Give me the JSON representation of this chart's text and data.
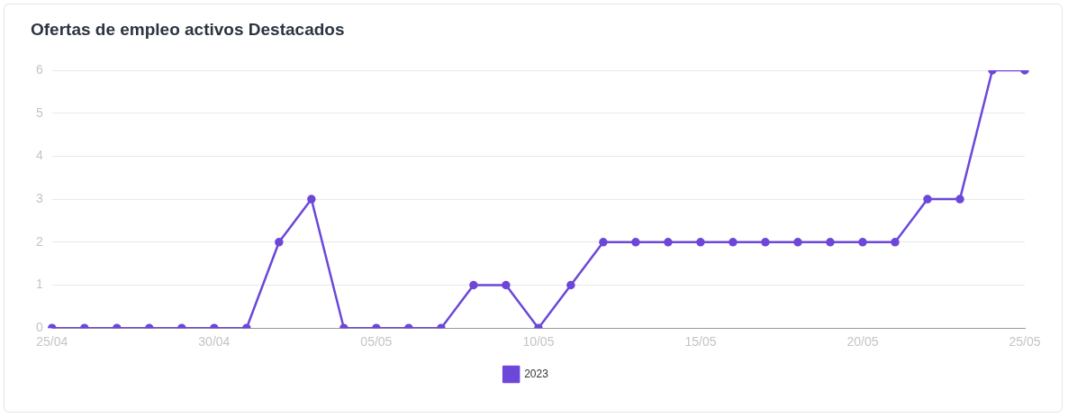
{
  "chart_data": {
    "type": "line",
    "title": "Ofertas de empleo activos Destacados",
    "categories": [
      "25/04",
      null,
      null,
      null,
      null,
      "30/04",
      null,
      null,
      null,
      null,
      "05/05",
      null,
      null,
      null,
      null,
      "10/05",
      null,
      null,
      null,
      null,
      "15/05",
      null,
      null,
      null,
      null,
      "20/05",
      null,
      null,
      null,
      null,
      "25/05"
    ],
    "series": [
      {
        "name": "2023",
        "color": "#6c47d9",
        "values": [
          0,
          0,
          0,
          0,
          0,
          0,
          0,
          2,
          3,
          0,
          0,
          0,
          0,
          1,
          1,
          0,
          1,
          2,
          2,
          2,
          2,
          2,
          2,
          2,
          2,
          2,
          2,
          3,
          3,
          6,
          6
        ]
      }
    ],
    "ylim": [
      0,
      6
    ],
    "yticks": [
      0,
      1,
      2,
      3,
      4,
      5,
      6
    ],
    "grid": "y",
    "legend": "bottom",
    "marker": "circle",
    "line_style": "solid"
  }
}
